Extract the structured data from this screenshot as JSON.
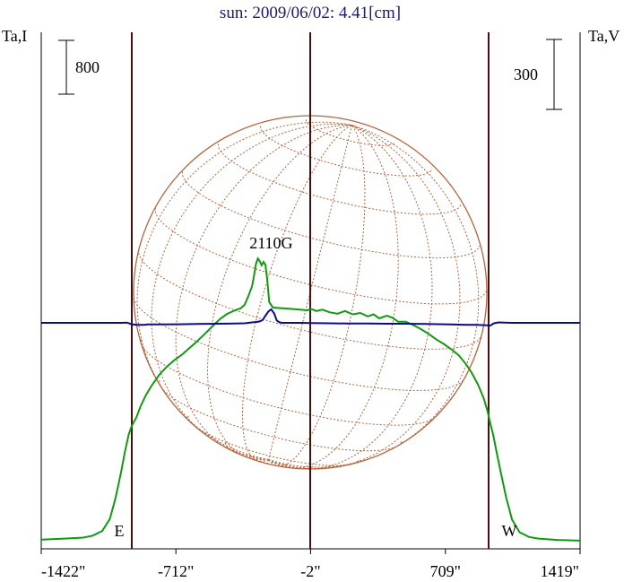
{
  "chart_data": {
    "type": "line",
    "title": "sun: 2009/06/02: 4.41[cm]",
    "left_axis_label": "Ta,I",
    "right_axis_label": "Ta,V",
    "scale_bars": {
      "left": {
        "label": "800",
        "value": 800
      },
      "right": {
        "label": "300",
        "value": 300
      }
    },
    "xlim": [
      -1422,
      1419
    ],
    "x_ticks": [
      {
        "value": -1422,
        "label": "-1422\""
      },
      {
        "value": -712,
        "label": "-712\""
      },
      {
        "value": -2,
        "label": "-2\""
      },
      {
        "value": 709,
        "label": "709\""
      },
      {
        "value": 1419,
        "label": "1419\""
      }
    ],
    "markers": [
      {
        "label": "E",
        "x": -945
      },
      {
        "label": "W",
        "x": 945
      }
    ],
    "center_line_x": -2,
    "annotation": {
      "text": "2110G",
      "x": -210
    },
    "solar_disk": {
      "radius_arcsec": 945,
      "grid": true
    },
    "colors": {
      "intensity": "#109a10",
      "polarization": "#0a0a96",
      "disk": "#b4643c",
      "vertical_lines": "#4a1010",
      "title": "#1a1a6e"
    },
    "series": [
      {
        "channel": "Ta,I",
        "color": "#109a10",
        "points": [
          [
            -1422,
            30
          ],
          [
            -1300,
            45
          ],
          [
            -1200,
            60
          ],
          [
            -1150,
            90
          ],
          [
            -1100,
            160
          ],
          [
            -1060,
            340
          ],
          [
            -1030,
            650
          ],
          [
            -1000,
            1050
          ],
          [
            -980,
            1350
          ],
          [
            -960,
            1600
          ],
          [
            -945,
            1720
          ],
          [
            -920,
            1850
          ],
          [
            -900,
            2000
          ],
          [
            -870,
            2180
          ],
          [
            -840,
            2320
          ],
          [
            -800,
            2480
          ],
          [
            -760,
            2600
          ],
          [
            -720,
            2700
          ],
          [
            -680,
            2780
          ],
          [
            -640,
            2880
          ],
          [
            -600,
            2980
          ],
          [
            -560,
            3090
          ],
          [
            -520,
            3200
          ],
          [
            -480,
            3310
          ],
          [
            -440,
            3390
          ],
          [
            -400,
            3440
          ],
          [
            -370,
            3470
          ],
          [
            -350,
            3520
          ],
          [
            -330,
            3650
          ],
          [
            -310,
            3800
          ],
          [
            -300,
            3960
          ],
          [
            -290,
            4130
          ],
          [
            -280,
            4210
          ],
          [
            -270,
            4170
          ],
          [
            -260,
            4110
          ],
          [
            -250,
            4160
          ],
          [
            -240,
            4120
          ],
          [
            -230,
            3880
          ],
          [
            -220,
            3560
          ],
          [
            -200,
            3480
          ],
          [
            -150,
            3470
          ],
          [
            -100,
            3460
          ],
          [
            -60,
            3450
          ],
          [
            -20,
            3440
          ],
          [
            0,
            3460
          ],
          [
            30,
            3430
          ],
          [
            60,
            3450
          ],
          [
            100,
            3410
          ],
          [
            140,
            3390
          ],
          [
            180,
            3430
          ],
          [
            220,
            3380
          ],
          [
            260,
            3400
          ],
          [
            300,
            3350
          ],
          [
            330,
            3380
          ],
          [
            360,
            3320
          ],
          [
            400,
            3360
          ],
          [
            430,
            3330
          ],
          [
            460,
            3270
          ],
          [
            500,
            3270
          ],
          [
            540,
            3220
          ],
          [
            580,
            3160
          ],
          [
            620,
            3090
          ],
          [
            660,
            3010
          ],
          [
            700,
            2940
          ],
          [
            740,
            2860
          ],
          [
            780,
            2770
          ],
          [
            820,
            2630
          ],
          [
            850,
            2500
          ],
          [
            880,
            2340
          ],
          [
            910,
            2140
          ],
          [
            930,
            1950
          ],
          [
            945,
            1770
          ],
          [
            960,
            1600
          ],
          [
            980,
            1320
          ],
          [
            1000,
            1040
          ],
          [
            1030,
            650
          ],
          [
            1060,
            330
          ],
          [
            1100,
            140
          ],
          [
            1150,
            70
          ],
          [
            1200,
            45
          ],
          [
            1300,
            25
          ],
          [
            1419,
            15
          ]
        ]
      },
      {
        "channel": "Ta,V",
        "color": "#0a0a96",
        "points": [
          [
            -1422,
            0
          ],
          [
            -1100,
            0
          ],
          [
            -1000,
            0
          ],
          [
            -970,
            1
          ],
          [
            -945,
            -6
          ],
          [
            -920,
            -9
          ],
          [
            -880,
            -9
          ],
          [
            -860,
            -7
          ],
          [
            -800,
            -7
          ],
          [
            -700,
            -6
          ],
          [
            -600,
            -5
          ],
          [
            -500,
            -4
          ],
          [
            -400,
            -3
          ],
          [
            -350,
            -2
          ],
          [
            -320,
            1
          ],
          [
            -300,
            3
          ],
          [
            -285,
            4
          ],
          [
            -270,
            6
          ],
          [
            -255,
            12
          ],
          [
            -240,
            30
          ],
          [
            -225,
            48
          ],
          [
            -210,
            58
          ],
          [
            -195,
            42
          ],
          [
            -180,
            10
          ],
          [
            -165,
            2
          ],
          [
            -150,
            0
          ],
          [
            -100,
            0
          ],
          [
            -50,
            0
          ],
          [
            0,
            -1
          ],
          [
            100,
            -2
          ],
          [
            200,
            -3
          ],
          [
            300,
            -3
          ],
          [
            400,
            -4
          ],
          [
            500,
            -4
          ],
          [
            600,
            -5
          ],
          [
            700,
            -6
          ],
          [
            800,
            -8
          ],
          [
            870,
            -9
          ],
          [
            920,
            -10
          ],
          [
            945,
            -12
          ],
          [
            965,
            -2
          ],
          [
            990,
            2
          ],
          [
            1020,
            1
          ],
          [
            1060,
            0
          ],
          [
            1150,
            0
          ],
          [
            1300,
            0
          ],
          [
            1419,
            0
          ]
        ]
      }
    ]
  }
}
